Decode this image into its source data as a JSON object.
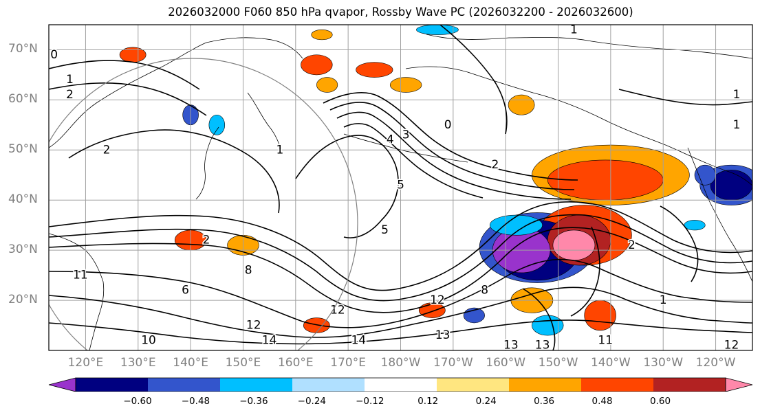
{
  "title": "2026032000 F060 850 hPa qvapor, Rossby Wave PC (2026032200 - 2026032600)",
  "map": {
    "lat_labels": [
      {
        "text": "70°N",
        "lat": 70
      },
      {
        "text": "60°N",
        "lat": 60
      },
      {
        "text": "50°N",
        "lat": 50
      },
      {
        "text": "40°N",
        "lat": 40
      },
      {
        "text": "30°N",
        "lat": 30
      },
      {
        "text": "20°N",
        "lat": 20
      }
    ],
    "lon_labels": [
      {
        "text": "120°E",
        "lon": 120
      },
      {
        "text": "130°E",
        "lon": 130
      },
      {
        "text": "140°E",
        "lon": 140
      },
      {
        "text": "150°E",
        "lon": 150
      },
      {
        "text": "160°E",
        "lon": 160
      },
      {
        "text": "170°E",
        "lon": 170
      },
      {
        "text": "180°W",
        "lon": 180
      },
      {
        "text": "170°W",
        "lon": 190
      },
      {
        "text": "160°W",
        "lon": 200
      },
      {
        "text": "150°W",
        "lon": 210
      },
      {
        "text": "140°W",
        "lon": 220
      },
      {
        "text": "130°W",
        "lon": 230
      },
      {
        "text": "120°W",
        "lon": 240
      }
    ],
    "extent": {
      "lon_min": 113,
      "lon_max": 247,
      "lat_min": 10,
      "lat_max": 75
    },
    "contour_labels": [
      {
        "text": "0",
        "lon": 114,
        "lat": 69
      },
      {
        "text": "1",
        "lon": 117,
        "lat": 64
      },
      {
        "text": "2",
        "lon": 117,
        "lat": 61
      },
      {
        "text": "2",
        "lon": 124,
        "lat": 50
      },
      {
        "text": "1",
        "lon": 213,
        "lat": 74
      },
      {
        "text": "1",
        "lon": 244,
        "lat": 61
      },
      {
        "text": "1",
        "lon": 244,
        "lat": 55
      },
      {
        "text": "2",
        "lon": 198,
        "lat": 47
      },
      {
        "text": "3",
        "lon": 181,
        "lat": 53
      },
      {
        "text": "4",
        "lon": 178,
        "lat": 52
      },
      {
        "text": "0",
        "lon": 189,
        "lat": 55
      },
      {
        "text": "5",
        "lon": 180,
        "lat": 43
      },
      {
        "text": "1",
        "lon": 157,
        "lat": 50
      },
      {
        "text": "2",
        "lon": 143,
        "lat": 32
      },
      {
        "text": "5",
        "lon": 177,
        "lat": 34
      },
      {
        "text": "8",
        "lon": 151,
        "lat": 26
      },
      {
        "text": "6",
        "lon": 139,
        "lat": 22
      },
      {
        "text": "8",
        "lon": 196,
        "lat": 22
      },
      {
        "text": "12",
        "lon": 187,
        "lat": 20
      },
      {
        "text": "12",
        "lon": 168,
        "lat": 18
      },
      {
        "text": "12",
        "lon": 152,
        "lat": 15
      },
      {
        "text": "14",
        "lon": 155,
        "lat": 12
      },
      {
        "text": "14",
        "lon": 172,
        "lat": 12
      },
      {
        "text": "13",
        "lon": 188,
        "lat": 13
      },
      {
        "text": "13",
        "lon": 201,
        "lat": 11
      },
      {
        "text": "13",
        "lon": 207,
        "lat": 11
      },
      {
        "text": "11",
        "lon": 119,
        "lat": 25
      },
      {
        "text": "10",
        "lon": 132,
        "lat": 12
      },
      {
        "text": "11",
        "lon": 219,
        "lat": 12
      },
      {
        "text": "1",
        "lon": 230,
        "lat": 20
      },
      {
        "text": "2",
        "lon": 224,
        "lat": 31
      },
      {
        "text": "12",
        "lon": 243,
        "lat": 11
      }
    ],
    "anomaly_patches": [
      {
        "lon": 203,
        "lat": 30,
        "rx": 5.5,
        "ry": 4.5,
        "level": -0.6
      },
      {
        "lon": 206,
        "lat": 30,
        "rx": 8,
        "ry": 6,
        "level": -0.48
      },
      {
        "lon": 206,
        "lat": 30.5,
        "rx": 11,
        "ry": 7,
        "level": -0.36
      },
      {
        "lon": 213,
        "lat": 31,
        "rx": 4,
        "ry": 3,
        "level": 0.6
      },
      {
        "lon": 214,
        "lat": 32,
        "rx": 6,
        "ry": 5,
        "level": 0.48
      },
      {
        "lon": 215,
        "lat": 33,
        "rx": 9,
        "ry": 6,
        "level": 0.36
      },
      {
        "lon": 219,
        "lat": 44,
        "rx": 11,
        "ry": 4,
        "level": 0.36
      },
      {
        "lon": 220,
        "lat": 45,
        "rx": 15,
        "ry": 6,
        "level": 0.24
      },
      {
        "lon": 243,
        "lat": 43,
        "rx": 4,
        "ry": 3,
        "level": -0.48
      },
      {
        "lon": 243,
        "lat": 43,
        "rx": 6,
        "ry": 4,
        "level": -0.36
      },
      {
        "lon": 218,
        "lat": 17,
        "rx": 3,
        "ry": 3,
        "level": 0.36
      },
      {
        "lon": 205,
        "lat": 20,
        "rx": 4,
        "ry": 2.5,
        "level": 0.24
      },
      {
        "lon": 129,
        "lat": 69,
        "rx": 2.5,
        "ry": 1.5,
        "level": 0.36
      },
      {
        "lon": 164,
        "lat": 67,
        "rx": 3,
        "ry": 2,
        "level": 0.36
      },
      {
        "lon": 175,
        "lat": 66,
        "rx": 3.5,
        "ry": 1.5,
        "level": 0.36
      },
      {
        "lon": 181,
        "lat": 63,
        "rx": 3,
        "ry": 1.5,
        "level": 0.24
      },
      {
        "lon": 203,
        "lat": 59,
        "rx": 2.5,
        "ry": 2,
        "level": 0.24
      },
      {
        "lon": 166,
        "lat": 63,
        "rx": 2,
        "ry": 1.5,
        "level": 0.24
      },
      {
        "lon": 150,
        "lat": 31,
        "rx": 3,
        "ry": 2,
        "level": 0.24
      },
      {
        "lon": 140,
        "lat": 32,
        "rx": 3,
        "ry": 2,
        "level": 0.36
      },
      {
        "lon": 202,
        "lat": 35,
        "rx": 5,
        "ry": 2,
        "level": -0.24
      },
      {
        "lon": 140,
        "lat": 57,
        "rx": 1.5,
        "ry": 2,
        "level": -0.36
      },
      {
        "lon": 145,
        "lat": 55,
        "rx": 1.5,
        "ry": 2,
        "level": -0.24
      },
      {
        "lon": 238,
        "lat": 45,
        "rx": 2,
        "ry": 2,
        "level": -0.36
      },
      {
        "lon": 208,
        "lat": 15,
        "rx": 3,
        "ry": 2,
        "level": -0.24
      },
      {
        "lon": 186,
        "lat": 18,
        "rx": 2.5,
        "ry": 1.5,
        "level": 0.36
      },
      {
        "lon": 164,
        "lat": 15,
        "rx": 2.5,
        "ry": 1.5,
        "level": 0.36
      },
      {
        "lon": 194,
        "lat": 17,
        "rx": 2,
        "ry": 1.5,
        "level": -0.36
      },
      {
        "lon": 236,
        "lat": 35,
        "rx": 2,
        "ry": 1,
        "level": -0.24
      },
      {
        "lon": 187,
        "lat": 74,
        "rx": 4,
        "ry": 1,
        "level": -0.24
      },
      {
        "lon": 165,
        "lat": 73,
        "rx": 2,
        "ry": 1,
        "level": 0.24
      }
    ],
    "colors": {
      "grid": "#a0a0a0",
      "contour": "#000000",
      "circle": "#808080",
      "coast": "#000000"
    }
  },
  "colorbar": {
    "levels": [
      -0.6,
      -0.48,
      -0.36,
      -0.24,
      -0.12,
      0.12,
      0.24,
      0.36,
      0.48,
      0.6
    ],
    "tick_labels": [
      "−0.60",
      "−0.48",
      "−0.36",
      "−0.24",
      "−0.12",
      "0.12",
      "0.24",
      "0.36",
      "0.48",
      "0.60"
    ],
    "colors": [
      "#9933cc",
      "#000080",
      "#3355cc",
      "#00bfff",
      "#b0e0ff",
      "#ffffff",
      "#ffe680",
      "#ffa500",
      "#ff4500",
      "#b22222",
      "#ff88aa"
    ]
  }
}
